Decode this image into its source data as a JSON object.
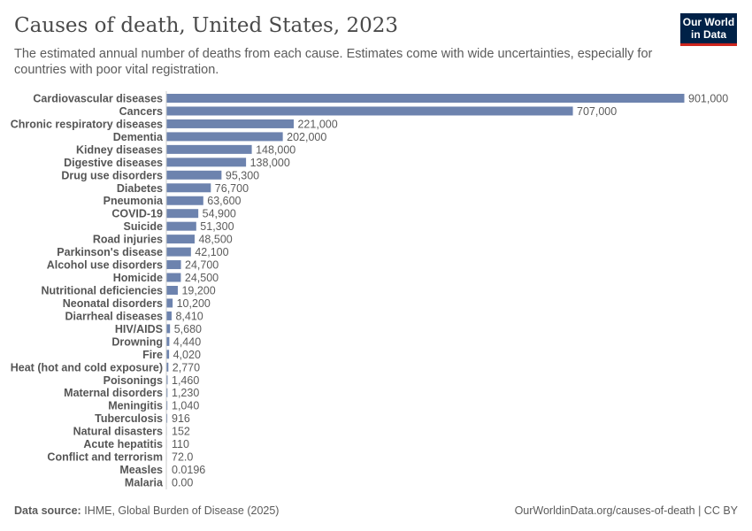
{
  "header": {
    "title": "Causes of death, United States, 2023",
    "subtitle": "The estimated annual number of deaths from each cause. Estimates come with wide uncertainties, especially for countries with poor vital registration.",
    "logo": "Our World in Data"
  },
  "footer": {
    "source_label": "Data source:",
    "source": "IHME, Global Burden of Disease (2025)",
    "url": "OurWorldinData.org/causes-of-death | CC BY"
  },
  "colors": {
    "bar": "#6d83ae",
    "axis": "#cccccc",
    "logo_bg": "#002147",
    "logo_accent": "#ce261e"
  },
  "chart_data": {
    "type": "bar",
    "orientation": "horizontal",
    "title": "Causes of death, United States, 2023",
    "categories": [
      "Cardiovascular diseases",
      "Cancers",
      "Chronic respiratory diseases",
      "Dementia",
      "Kidney diseases",
      "Digestive diseases",
      "Drug use disorders",
      "Diabetes",
      "Pneumonia",
      "COVID-19",
      "Suicide",
      "Road injuries",
      "Parkinson's disease",
      "Alcohol use disorders",
      "Homicide",
      "Nutritional deficiencies",
      "Neonatal disorders",
      "Diarrheal diseases",
      "HIV/AIDS",
      "Drowning",
      "Fire",
      "Heat (hot and cold exposure)",
      "Poisonings",
      "Maternal disorders",
      "Meningitis",
      "Tuberculosis",
      "Natural disasters",
      "Acute hepatitis",
      "Conflict and terrorism",
      "Measles",
      "Malaria"
    ],
    "values": [
      901000,
      707000,
      221000,
      202000,
      148000,
      138000,
      95300,
      76700,
      63600,
      54900,
      51300,
      48500,
      42100,
      24700,
      24500,
      19200,
      10200,
      8410,
      5680,
      4440,
      4020,
      2770,
      1460,
      1230,
      1040,
      916,
      152,
      110,
      72.0,
      0.0196,
      0.0
    ],
    "value_labels": [
      "901,000",
      "707,000",
      "221,000",
      "202,000",
      "148,000",
      "138,000",
      "95,300",
      "76,700",
      "63,600",
      "54,900",
      "51,300",
      "48,500",
      "42,100",
      "24,700",
      "24,500",
      "19,200",
      "10,200",
      "8,410",
      "5,680",
      "4,440",
      "4,020",
      "2,770",
      "1,460",
      "1,230",
      "1,040",
      "916",
      "152",
      "110",
      "72.0",
      "0.0196",
      "0.00"
    ],
    "xlim": [
      0,
      901000
    ],
    "grid": false,
    "legend": "none"
  }
}
